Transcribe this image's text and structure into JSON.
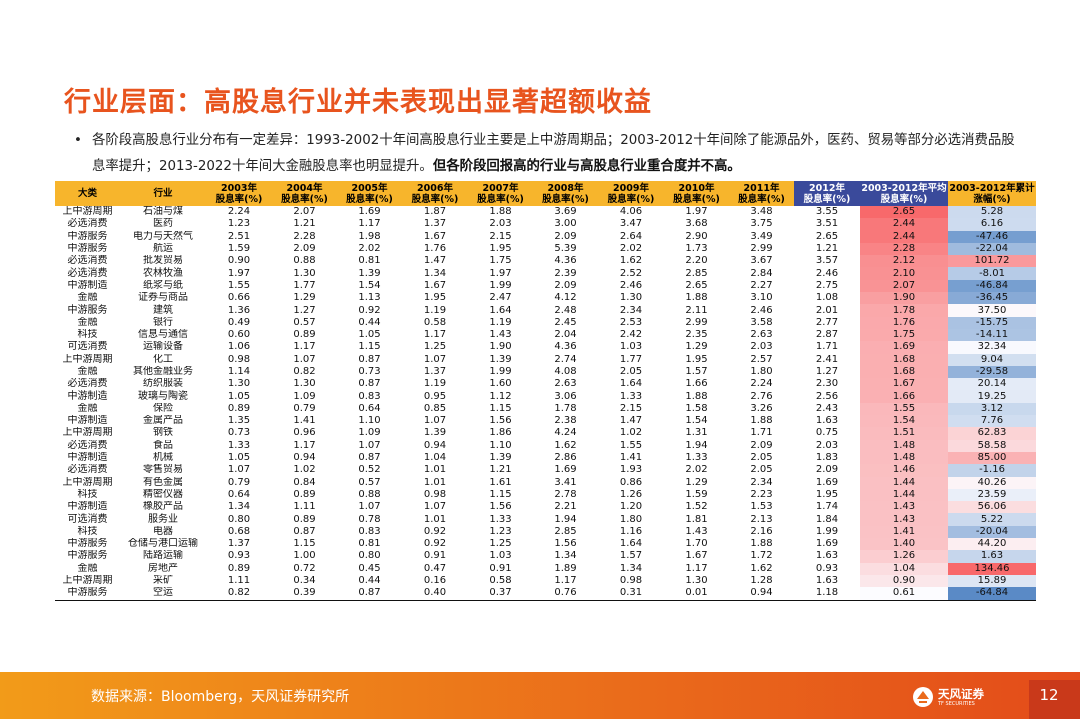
{
  "title": "行业层面：高股息行业并未表现出显著超额收益",
  "bullet": {
    "dot": "•",
    "normal": "各阶段高股息行业分布有一定差异：1993-2002十年间高股息行业主要是上中游周期品；2003-2012十年间除了能源品外，医药、贸易等部分必选消费品股息率提升；2013-2022十年间大金融股息率也明显提升。",
    "bold": "但各阶段回报高的行业与高股息行业重合度并不高。"
  },
  "table": {
    "headers": [
      {
        "l1": "大类",
        "l2": ""
      },
      {
        "l1": "行业",
        "l2": ""
      },
      {
        "l1": "2003年",
        "l2": "股息率(%)"
      },
      {
        "l1": "2004年",
        "l2": "股息率(%)"
      },
      {
        "l1": "2005年",
        "l2": "股息率(%)"
      },
      {
        "l1": "2006年",
        "l2": "股息率(%)"
      },
      {
        "l1": "2007年",
        "l2": "股息率(%)"
      },
      {
        "l1": "2008年",
        "l2": "股息率(%)"
      },
      {
        "l1": "2009年",
        "l2": "股息率(%)"
      },
      {
        "l1": "2010年",
        "l2": "股息率(%)"
      },
      {
        "l1": "2011年",
        "l2": "股息率(%)"
      },
      {
        "l1": "2012年",
        "l2": "股息率(%)"
      },
      {
        "l1": "2003-2012年平均",
        "l2": "股息率(%)"
      },
      {
        "l1": "2003-2012年累计",
        "l2": "涨幅(%)"
      }
    ],
    "rows": [
      [
        "上中游周期",
        "石油与煤",
        "2.24",
        "2.07",
        "1.69",
        "1.87",
        "1.88",
        "3.69",
        "4.06",
        "1.97",
        "3.48",
        "3.55",
        "2.65",
        "5.28"
      ],
      [
        "必选消费",
        "医药",
        "1.23",
        "1.21",
        "1.17",
        "1.37",
        "2.03",
        "3.00",
        "3.47",
        "3.68",
        "3.75",
        "3.51",
        "2.44",
        "6.16"
      ],
      [
        "中游服务",
        "电力与天然气",
        "2.51",
        "2.28",
        "1.98",
        "1.67",
        "2.15",
        "2.09",
        "2.64",
        "2.90",
        "3.49",
        "2.65",
        "2.44",
        "-47.46"
      ],
      [
        "中游服务",
        "航运",
        "1.59",
        "2.09",
        "2.02",
        "1.76",
        "1.95",
        "5.39",
        "2.02",
        "1.73",
        "2.99",
        "1.21",
        "2.28",
        "-22.04"
      ],
      [
        "必选消费",
        "批发贸易",
        "0.90",
        "0.88",
        "0.81",
        "1.47",
        "1.75",
        "4.36",
        "1.62",
        "2.20",
        "3.67",
        "3.57",
        "2.12",
        "101.72"
      ],
      [
        "必选消费",
        "农林牧渔",
        "1.97",
        "1.30",
        "1.39",
        "1.34",
        "1.97",
        "2.39",
        "2.52",
        "2.85",
        "2.84",
        "2.46",
        "2.10",
        "-8.01"
      ],
      [
        "中游制造",
        "纸浆与纸",
        "1.55",
        "1.77",
        "1.54",
        "1.67",
        "1.99",
        "2.09",
        "2.46",
        "2.65",
        "2.27",
        "2.75",
        "2.07",
        "-46.84"
      ],
      [
        "金融",
        "证券与商品",
        "0.66",
        "1.29",
        "1.13",
        "1.95",
        "2.47",
        "4.12",
        "1.30",
        "1.88",
        "3.10",
        "1.08",
        "1.90",
        "-36.45"
      ],
      [
        "中游服务",
        "建筑",
        "1.36",
        "1.27",
        "0.92",
        "1.19",
        "1.64",
        "2.48",
        "2.34",
        "2.11",
        "2.46",
        "2.01",
        "1.78",
        "37.50"
      ],
      [
        "金融",
        "银行",
        "0.49",
        "0.57",
        "0.44",
        "0.58",
        "1.19",
        "2.45",
        "2.53",
        "2.99",
        "3.58",
        "2.77",
        "1.76",
        "-15.75"
      ],
      [
        "科技",
        "信息与通信",
        "0.60",
        "0.89",
        "1.05",
        "1.17",
        "1.43",
        "2.04",
        "2.42",
        "2.35",
        "2.63",
        "2.87",
        "1.75",
        "-14.11"
      ],
      [
        "可选消费",
        "运输设备",
        "1.06",
        "1.17",
        "1.15",
        "1.25",
        "1.90",
        "4.36",
        "1.03",
        "1.29",
        "2.03",
        "1.71",
        "1.69",
        "32.34"
      ],
      [
        "上中游周期",
        "化工",
        "0.98",
        "1.07",
        "0.87",
        "1.07",
        "1.39",
        "2.74",
        "1.77",
        "1.95",
        "2.57",
        "2.41",
        "1.68",
        "9.04"
      ],
      [
        "金融",
        "其他金融业务",
        "1.14",
        "0.82",
        "0.73",
        "1.37",
        "1.99",
        "4.08",
        "2.05",
        "1.57",
        "1.80",
        "1.27",
        "1.68",
        "-29.58"
      ],
      [
        "必选消费",
        "纺织服装",
        "1.30",
        "1.30",
        "0.87",
        "1.19",
        "1.60",
        "2.63",
        "1.64",
        "1.66",
        "2.24",
        "2.30",
        "1.67",
        "20.14"
      ],
      [
        "中游制造",
        "玻璃与陶瓷",
        "1.05",
        "1.09",
        "0.83",
        "0.95",
        "1.12",
        "3.06",
        "1.33",
        "1.88",
        "2.76",
        "2.56",
        "1.66",
        "19.25"
      ],
      [
        "金融",
        "保险",
        "0.89",
        "0.79",
        "0.64",
        "0.85",
        "1.15",
        "1.78",
        "2.15",
        "1.58",
        "3.26",
        "2.43",
        "1.55",
        "3.12"
      ],
      [
        "中游制造",
        "金属产品",
        "1.35",
        "1.41",
        "1.10",
        "1.07",
        "1.56",
        "2.38",
        "1.47",
        "1.54",
        "1.88",
        "1.63",
        "1.54",
        "7.76"
      ],
      [
        "上中游周期",
        "钢铁",
        "0.73",
        "0.96",
        "1.09",
        "1.39",
        "1.86",
        "4.24",
        "1.02",
        "1.31",
        "1.71",
        "0.75",
        "1.51",
        "62.83"
      ],
      [
        "必选消费",
        "食品",
        "1.33",
        "1.17",
        "1.07",
        "0.94",
        "1.10",
        "1.62",
        "1.55",
        "1.94",
        "2.09",
        "2.03",
        "1.48",
        "58.58"
      ],
      [
        "中游制造",
        "机械",
        "1.05",
        "0.94",
        "0.87",
        "1.04",
        "1.39",
        "2.86",
        "1.41",
        "1.33",
        "2.05",
        "1.83",
        "1.48",
        "85.00"
      ],
      [
        "必选消费",
        "零售贸易",
        "1.07",
        "1.02",
        "0.52",
        "1.01",
        "1.21",
        "1.69",
        "1.93",
        "2.02",
        "2.05",
        "2.09",
        "1.46",
        "-1.16"
      ],
      [
        "上中游周期",
        "有色金属",
        "0.79",
        "0.84",
        "0.57",
        "1.01",
        "1.61",
        "3.41",
        "0.86",
        "1.29",
        "2.34",
        "1.69",
        "1.44",
        "40.26"
      ],
      [
        "科技",
        "精密仪器",
        "0.64",
        "0.89",
        "0.88",
        "0.98",
        "1.15",
        "2.78",
        "1.26",
        "1.59",
        "2.23",
        "1.95",
        "1.44",
        "23.59"
      ],
      [
        "中游制造",
        "橡胶产品",
        "1.34",
        "1.11",
        "1.07",
        "1.07",
        "1.56",
        "2.21",
        "1.20",
        "1.52",
        "1.53",
        "1.74",
        "1.43",
        "56.06"
      ],
      [
        "可选消费",
        "服务业",
        "0.80",
        "0.89",
        "0.78",
        "1.01",
        "1.33",
        "1.94",
        "1.80",
        "1.81",
        "2.13",
        "1.84",
        "1.43",
        "5.22"
      ],
      [
        "科技",
        "电器",
        "0.68",
        "0.87",
        "0.83",
        "0.92",
        "1.23",
        "2.85",
        "1.16",
        "1.43",
        "2.16",
        "1.99",
        "1.41",
        "-20.04"
      ],
      [
        "中游服务",
        "仓储与港口运输",
        "1.37",
        "1.15",
        "0.81",
        "0.92",
        "1.25",
        "1.56",
        "1.64",
        "1.70",
        "1.88",
        "1.69",
        "1.40",
        "44.20"
      ],
      [
        "中游服务",
        "陆路运输",
        "0.93",
        "1.00",
        "0.80",
        "0.91",
        "1.03",
        "1.34",
        "1.57",
        "1.67",
        "1.72",
        "1.63",
        "1.26",
        "1.63"
      ],
      [
        "金融",
        "房地产",
        "0.89",
        "0.72",
        "0.45",
        "0.47",
        "0.91",
        "1.89",
        "1.34",
        "1.17",
        "1.62",
        "0.93",
        "1.04",
        "134.46"
      ],
      [
        "上中游周期",
        "采矿",
        "1.11",
        "0.34",
        "0.44",
        "0.16",
        "0.58",
        "1.17",
        "0.98",
        "1.30",
        "1.28",
        "1.63",
        "0.90",
        "15.89"
      ],
      [
        "中游服务",
        "空运",
        "0.82",
        "0.39",
        "0.87",
        "0.40",
        "0.37",
        "0.76",
        "0.31",
        "0.01",
        "0.94",
        "1.18",
        "0.61",
        "-64.84"
      ]
    ]
  },
  "colors": {
    "title": "#e8541e",
    "header_fill": "#f7b52c",
    "header_fill_dark": "#3a4a9b",
    "heat_red": "#f8696b",
    "heat_blue": "#5a8ac6",
    "footer_orange": "#ea6a1b"
  },
  "footer": {
    "source": "数据来源：Bloomberg，天风证券研究所",
    "logo_name": "天风证券",
    "logo_sub": "TF SECURITIES",
    "page": "12"
  }
}
